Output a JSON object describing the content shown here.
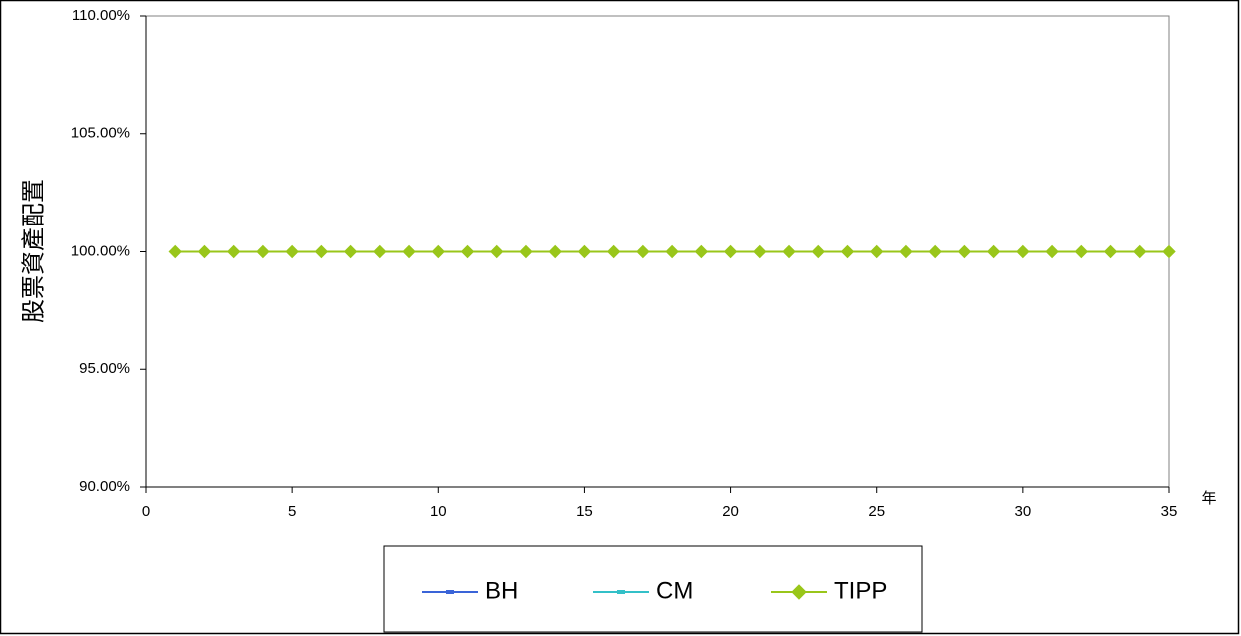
{
  "chart_data": {
    "type": "line",
    "title": "",
    "xlabel": "年",
    "ylabel": "股票資產配置",
    "xlim": [
      0,
      35
    ],
    "ylim": [
      0.9,
      1.1
    ],
    "x_ticks": [
      0,
      5,
      10,
      15,
      20,
      25,
      30,
      35
    ],
    "y_ticks": [
      0.9,
      0.95,
      1.0,
      1.05,
      1.1
    ],
    "y_tick_labels": [
      "90.00%",
      "95.00%",
      "100.00%",
      "105.00%",
      "110.00%"
    ],
    "grid": false,
    "legend_position": "bottom",
    "x": [
      1,
      2,
      3,
      4,
      5,
      6,
      7,
      8,
      9,
      10,
      11,
      12,
      13,
      14,
      15,
      16,
      17,
      18,
      19,
      20,
      21,
      22,
      23,
      24,
      25,
      26,
      27,
      28,
      29,
      30,
      31,
      32,
      33,
      34,
      35
    ],
    "series": [
      {
        "name": "BH",
        "color": "#3a64d8",
        "marker": "dash",
        "values": [
          1,
          1,
          1,
          1,
          1,
          1,
          1,
          1,
          1,
          1,
          1,
          1,
          1,
          1,
          1,
          1,
          1,
          1,
          1,
          1,
          1,
          1,
          1,
          1,
          1,
          1,
          1,
          1,
          1,
          1,
          1,
          1,
          1,
          1,
          1
        ]
      },
      {
        "name": "CM",
        "color": "#33c0c8",
        "marker": "dash",
        "values": [
          1,
          1,
          1,
          1,
          1,
          1,
          1,
          1,
          1,
          1,
          1,
          1,
          1,
          1,
          1,
          1,
          1,
          1,
          1,
          1,
          1,
          1,
          1,
          1,
          1,
          1,
          1,
          1,
          1,
          1,
          1,
          1,
          1,
          1,
          1
        ]
      },
      {
        "name": "TIPP",
        "color": "#99c61a",
        "marker": "diamond",
        "values": [
          1,
          1,
          1,
          1,
          1,
          1,
          1,
          1,
          1,
          1,
          1,
          1,
          1,
          1,
          1,
          1,
          1,
          1,
          1,
          1,
          1,
          1,
          1,
          1,
          1,
          1,
          1,
          1,
          1,
          1,
          1,
          1,
          1,
          1,
          1
        ]
      }
    ]
  }
}
